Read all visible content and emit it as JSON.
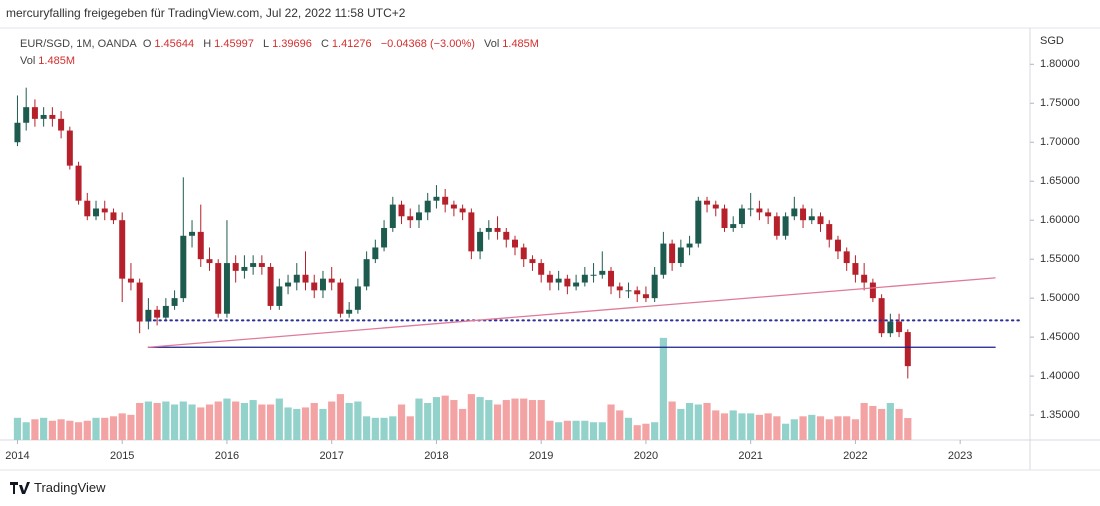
{
  "chart_data": {
    "type": "candlestick",
    "header": "mercuryfalling freigegeben für TradingView.com, Jul 22, 2022 11:58 UTC+2",
    "legend": {
      "symbol": "EUR/SGD, 1M, OANDA",
      "o_label": "O",
      "o": 1.45644,
      "h_label": "H",
      "h": 1.45997,
      "l_label": "L",
      "l": 1.39696,
      "c_label": "C",
      "c": 1.41276,
      "change": "−0.04368 (−3.00%)",
      "vol_label": "Vol",
      "vol": "1.485M"
    },
    "y_axis_label": "SGD",
    "brand": "TradingView",
    "x": [
      "2014-01",
      "2014-02",
      "2014-03",
      "2014-04",
      "2014-05",
      "2014-06",
      "2014-07",
      "2014-08",
      "2014-09",
      "2014-10",
      "2014-11",
      "2014-12",
      "2015-01",
      "2015-02",
      "2015-03",
      "2015-04",
      "2015-05",
      "2015-06",
      "2015-07",
      "2015-08",
      "2015-09",
      "2015-10",
      "2015-11",
      "2015-12",
      "2016-01",
      "2016-02",
      "2016-03",
      "2016-04",
      "2016-05",
      "2016-06",
      "2016-07",
      "2016-08",
      "2016-09",
      "2016-10",
      "2016-11",
      "2016-12",
      "2017-01",
      "2017-02",
      "2017-03",
      "2017-04",
      "2017-05",
      "2017-06",
      "2017-07",
      "2017-08",
      "2017-09",
      "2017-10",
      "2017-11",
      "2017-12",
      "2018-01",
      "2018-02",
      "2018-03",
      "2018-04",
      "2018-05",
      "2018-06",
      "2018-07",
      "2018-08",
      "2018-09",
      "2018-10",
      "2018-11",
      "2018-12",
      "2019-01",
      "2019-02",
      "2019-03",
      "2019-04",
      "2019-05",
      "2019-06",
      "2019-07",
      "2019-08",
      "2019-09",
      "2019-10",
      "2019-11",
      "2019-12",
      "2020-01",
      "2020-02",
      "2020-03",
      "2020-04",
      "2020-05",
      "2020-06",
      "2020-07",
      "2020-08",
      "2020-09",
      "2020-10",
      "2020-11",
      "2020-12",
      "2021-01",
      "2021-02",
      "2021-03",
      "2021-04",
      "2021-05",
      "2021-06",
      "2021-07",
      "2021-08",
      "2021-09",
      "2021-10",
      "2021-11",
      "2021-12",
      "2022-01",
      "2022-02",
      "2022-03",
      "2022-04",
      "2022-05",
      "2022-06",
      "2022-07"
    ],
    "open": [
      1.7,
      1.725,
      1.745,
      1.73,
      1.735,
      1.73,
      1.715,
      1.67,
      1.625,
      1.605,
      1.615,
      1.61,
      1.6,
      1.525,
      1.52,
      1.47,
      1.485,
      1.475,
      1.49,
      1.5,
      1.58,
      1.585,
      1.55,
      1.545,
      1.48,
      1.545,
      1.535,
      1.54,
      1.545,
      1.54,
      1.49,
      1.515,
      1.52,
      1.53,
      1.52,
      1.51,
      1.525,
      1.52,
      1.48,
      1.485,
      1.515,
      1.55,
      1.565,
      1.59,
      1.62,
      1.605,
      1.6,
      1.61,
      1.625,
      1.63,
      1.62,
      1.615,
      1.61,
      1.56,
      1.585,
      1.59,
      1.585,
      1.575,
      1.565,
      1.55,
      1.545,
      1.53,
      1.52,
      1.525,
      1.515,
      1.52,
      1.53,
      1.53,
      1.535,
      1.515,
      1.51,
      1.51,
      1.505,
      1.5,
      1.53,
      1.57,
      1.545,
      1.565,
      1.57,
      1.625,
      1.62,
      1.615,
      1.59,
      1.595,
      1.615,
      1.615,
      1.61,
      1.605,
      1.58,
      1.605,
      1.615,
      1.6,
      1.605,
      1.595,
      1.575,
      1.56,
      1.545,
      1.53,
      1.52,
      1.5,
      1.455,
      1.47,
      1.45644
    ],
    "high": [
      1.76,
      1.77,
      1.755,
      1.745,
      1.745,
      1.74,
      1.72,
      1.675,
      1.635,
      1.625,
      1.625,
      1.615,
      1.61,
      1.545,
      1.525,
      1.5,
      1.49,
      1.5,
      1.51,
      1.655,
      1.6,
      1.62,
      1.565,
      1.55,
      1.6,
      1.555,
      1.555,
      1.555,
      1.555,
      1.545,
      1.525,
      1.53,
      1.545,
      1.56,
      1.53,
      1.535,
      1.54,
      1.525,
      1.495,
      1.525,
      1.56,
      1.575,
      1.6,
      1.63,
      1.625,
      1.615,
      1.62,
      1.635,
      1.645,
      1.64,
      1.625,
      1.62,
      1.615,
      1.59,
      1.6,
      1.605,
      1.59,
      1.58,
      1.57,
      1.555,
      1.55,
      1.535,
      1.535,
      1.53,
      1.53,
      1.54,
      1.545,
      1.56,
      1.54,
      1.52,
      1.52,
      1.515,
      1.515,
      1.54,
      1.585,
      1.575,
      1.575,
      1.58,
      1.63,
      1.63,
      1.625,
      1.62,
      1.605,
      1.62,
      1.635,
      1.625,
      1.615,
      1.61,
      1.61,
      1.63,
      1.62,
      1.615,
      1.61,
      1.6,
      1.58,
      1.565,
      1.555,
      1.545,
      1.525,
      1.505,
      1.48,
      1.48,
      1.45997
    ],
    "low": [
      1.695,
      1.715,
      1.72,
      1.72,
      1.72,
      1.705,
      1.665,
      1.62,
      1.6,
      1.6,
      1.6,
      1.595,
      1.495,
      1.51,
      1.455,
      1.46,
      1.465,
      1.47,
      1.485,
      1.495,
      1.565,
      1.54,
      1.535,
      1.475,
      1.475,
      1.52,
      1.525,
      1.53,
      1.53,
      1.485,
      1.485,
      1.505,
      1.51,
      1.51,
      1.5,
      1.5,
      1.51,
      1.475,
      1.475,
      1.48,
      1.51,
      1.545,
      1.56,
      1.585,
      1.595,
      1.59,
      1.59,
      1.6,
      1.615,
      1.61,
      1.605,
      1.6,
      1.55,
      1.55,
      1.575,
      1.575,
      1.565,
      1.555,
      1.54,
      1.535,
      1.52,
      1.51,
      1.51,
      1.505,
      1.51,
      1.515,
      1.52,
      1.525,
      1.505,
      1.5,
      1.5,
      1.495,
      1.495,
      1.495,
      1.525,
      1.535,
      1.54,
      1.555,
      1.565,
      1.61,
      1.605,
      1.585,
      1.585,
      1.59,
      1.605,
      1.6,
      1.595,
      1.575,
      1.575,
      1.6,
      1.59,
      1.595,
      1.585,
      1.565,
      1.55,
      1.535,
      1.52,
      1.51,
      1.495,
      1.45,
      1.45,
      1.45,
      1.39696
    ],
    "close": [
      1.725,
      1.745,
      1.73,
      1.735,
      1.73,
      1.715,
      1.67,
      1.625,
      1.605,
      1.615,
      1.61,
      1.6,
      1.525,
      1.52,
      1.47,
      1.485,
      1.475,
      1.49,
      1.5,
      1.58,
      1.585,
      1.55,
      1.545,
      1.48,
      1.545,
      1.535,
      1.54,
      1.545,
      1.54,
      1.49,
      1.515,
      1.52,
      1.53,
      1.52,
      1.51,
      1.525,
      1.52,
      1.48,
      1.485,
      1.515,
      1.55,
      1.565,
      1.59,
      1.62,
      1.605,
      1.6,
      1.61,
      1.625,
      1.63,
      1.62,
      1.615,
      1.61,
      1.56,
      1.585,
      1.59,
      1.585,
      1.575,
      1.565,
      1.55,
      1.545,
      1.53,
      1.52,
      1.525,
      1.515,
      1.52,
      1.53,
      1.53,
      1.535,
      1.515,
      1.51,
      1.51,
      1.505,
      1.5,
      1.53,
      1.57,
      1.545,
      1.565,
      1.57,
      1.625,
      1.62,
      1.615,
      1.59,
      1.595,
      1.615,
      1.615,
      1.61,
      1.605,
      1.58,
      1.605,
      1.615,
      1.6,
      1.605,
      1.595,
      1.575,
      1.56,
      1.545,
      1.53,
      1.52,
      1.5,
      1.455,
      1.47,
      1.45644,
      1.41276
    ],
    "volume": [
      1.5,
      1.2,
      1.4,
      1.5,
      1.3,
      1.4,
      1.3,
      1.2,
      1.3,
      1.5,
      1.5,
      1.6,
      1.8,
      1.7,
      2.5,
      2.6,
      2.5,
      2.6,
      2.4,
      2.6,
      2.4,
      2.2,
      2.4,
      2.6,
      2.8,
      2.6,
      2.5,
      2.7,
      2.4,
      2.4,
      2.8,
      2.2,
      2.1,
      2.2,
      2.5,
      2.1,
      2.6,
      3.1,
      2.5,
      2.6,
      1.6,
      1.5,
      1.5,
      1.6,
      2.4,
      1.6,
      2.8,
      2.5,
      2.9,
      3.0,
      2.7,
      2.1,
      3.1,
      2.9,
      2.7,
      2.4,
      2.7,
      2.8,
      2.8,
      2.7,
      2.7,
      1.3,
      1.2,
      1.3,
      1.3,
      1.3,
      1.2,
      1.2,
      2.4,
      2.0,
      1.5,
      1.0,
      1.1,
      1.2,
      6.9,
      2.6,
      2.1,
      2.5,
      2.4,
      2.5,
      2.0,
      1.8,
      2.0,
      1.8,
      1.8,
      1.7,
      1.8,
      1.6,
      1.1,
      1.4,
      1.6,
      1.7,
      1.6,
      1.4,
      1.6,
      1.6,
      1.4,
      2.5,
      2.3,
      2.1,
      2.5,
      2.1,
      1.485
    ],
    "up_color": "#1e5b4f",
    "down_color": "#b5202a",
    "volume_up_color": "#93d2cb",
    "volume_down_color": "#f3a3a3",
    "drawings": [
      {
        "style": "dotted",
        "color": "#2b2f9c",
        "x": [
          "2015-04",
          "2023-08"
        ],
        "y": [
          1.4715,
          1.4715
        ]
      },
      {
        "style": "solid",
        "color": "#1a1f8f",
        "x": [
          "2015-04",
          "2023-05"
        ],
        "y": [
          1.437,
          1.437
        ]
      },
      {
        "style": "solid",
        "color": "#e07a98",
        "x": [
          "2015-04",
          "2023-05"
        ],
        "y": [
          1.437,
          1.526
        ]
      }
    ],
    "xlim": [
      "2013-11",
      "2023-09"
    ],
    "xticks": [
      2014,
      2015,
      2016,
      2017,
      2018,
      2019,
      2020,
      2021,
      2022,
      2023
    ],
    "ylim": [
      1.318,
      1.844
    ],
    "yticks": [
      {
        "value": 1.35,
        "label": "1.35000"
      },
      {
        "value": 1.4,
        "label": "1.40000"
      },
      {
        "value": 1.45,
        "label": "1.45000"
      },
      {
        "value": 1.5,
        "label": "1.50000"
      },
      {
        "value": 1.55,
        "label": "1.55000"
      },
      {
        "value": 1.6,
        "label": "1.60000"
      },
      {
        "value": 1.65,
        "label": "1.65000"
      },
      {
        "value": 1.7,
        "label": "1.70000"
      },
      {
        "value": 1.75,
        "label": "1.75000"
      },
      {
        "value": 1.8,
        "label": "1.80000"
      }
    ],
    "volume_ylim": [
      0,
      27.7
    ],
    "grid": false
  }
}
